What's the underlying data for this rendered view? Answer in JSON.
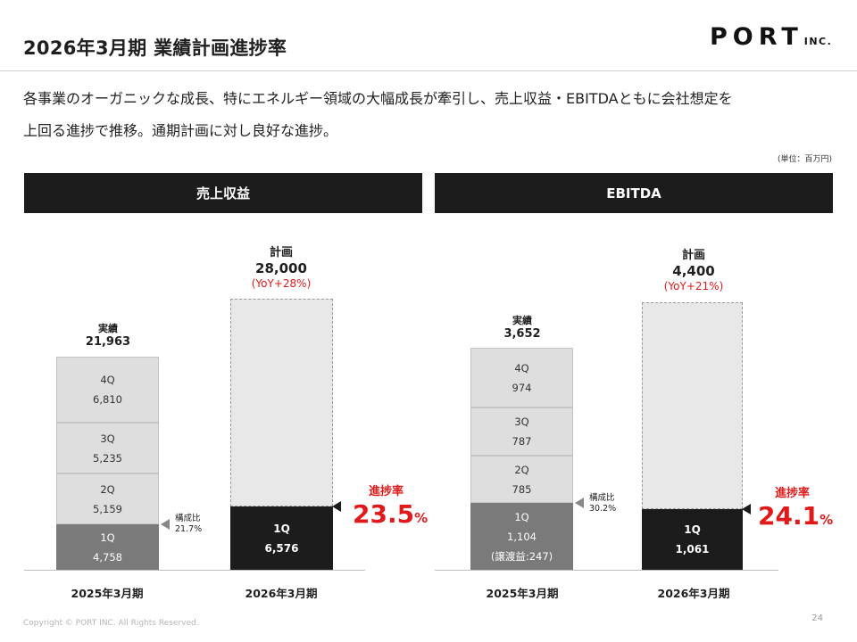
{
  "header": {
    "title": "2026年3月期 業績計画進捗率",
    "logo_main": "PORT",
    "logo_sub": "INC."
  },
  "lead": {
    "line1": "各事業のオーガニックな成長、特にエネルギー領域の大幅成長が牽引し、売上収益・EBITDAともに会社想定を",
    "line2": "上回る進捗で推移。通期計画に対し良好な進捗。"
  },
  "unit_note": "(単位：百万円)",
  "revenue": {
    "header": "売上収益",
    "actual": {
      "title": "実績",
      "total": "21,963",
      "segments": [
        {
          "label": "4Q",
          "value": "6,810"
        },
        {
          "label": "3Q",
          "value": "5,235"
        },
        {
          "label": "2Q",
          "value": "5,159"
        },
        {
          "label": "1Q",
          "value": "4,758"
        }
      ],
      "ratio_label": "構成比",
      "ratio_value": "21.7%"
    },
    "plan": {
      "title": "計画",
      "total": "28,000",
      "yoy": "(YoY+28%)",
      "q1_label": "1Q",
      "q1_value": "6,576"
    },
    "progress_label": "進捗率",
    "progress_value": "23.5",
    "progress_unit": "%",
    "x_labels": [
      "2025年3月期",
      "2026年3月期"
    ]
  },
  "ebitda": {
    "header": "EBITDA",
    "actual": {
      "title": "実績",
      "total": "3,652",
      "segments": [
        {
          "label": "4Q",
          "value": "974"
        },
        {
          "label": "3Q",
          "value": "787"
        },
        {
          "label": "2Q",
          "value": "785"
        },
        {
          "label": "1Q",
          "value": "1,104",
          "note": "(譲渡益:247)"
        }
      ],
      "ratio_label": "構成比",
      "ratio_value": "30.2%"
    },
    "plan": {
      "title": "計画",
      "total": "4,400",
      "yoy": "(YoY+21%)",
      "q1_label": "1Q",
      "q1_value": "1,061"
    },
    "progress_label": "進捗率",
    "progress_value": "24.1",
    "progress_unit": "%",
    "x_labels": [
      "2025年3月期",
      "2026年3月期"
    ]
  },
  "footer": {
    "copyright": "Copyright © PORT INC. All Rights Reserved.",
    "page": "24"
  },
  "colors": {
    "accent_red": "#e01a1a",
    "dark_bar": "#1c1c1c",
    "mid_bar": "#7a7a7a",
    "light_bar": "#dedede"
  }
}
